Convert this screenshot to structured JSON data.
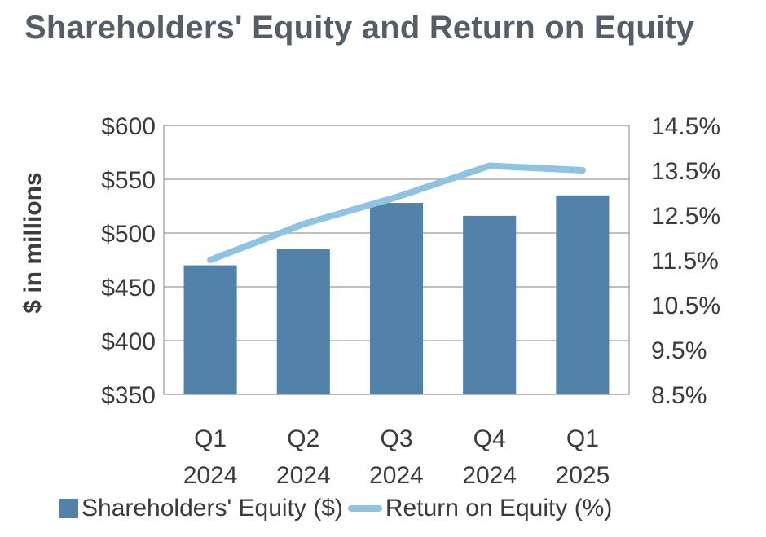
{
  "chart_data": {
    "type": "bar",
    "title": "Shareholders' Equity and Return on Equity",
    "xlabel": "",
    "ylabel": "$ in millions",
    "categories": [
      [
        "Q1",
        "2024"
      ],
      [
        "Q2",
        "2024"
      ],
      [
        "Q3",
        "2024"
      ],
      [
        "Q4",
        "2024"
      ],
      [
        "Q1",
        "2025"
      ]
    ],
    "series": [
      {
        "name": "Shareholders' Equity ($)",
        "type": "bar",
        "axis": "left",
        "color": "#5282aa",
        "values": [
          470,
          485,
          528,
          516,
          535
        ]
      },
      {
        "name": "Return on Equity (%)",
        "type": "line",
        "axis": "right",
        "color": "#8ec3e3",
        "values": [
          11.5,
          12.3,
          12.9,
          13.6,
          13.5
        ]
      }
    ],
    "y_left": {
      "range": [
        350,
        600
      ],
      "ticks": [
        350,
        400,
        450,
        500,
        550,
        600
      ],
      "tick_labels": [
        "$350",
        "$400",
        "$450",
        "$500",
        "$550",
        "$600"
      ]
    },
    "y_right": {
      "range": [
        8.5,
        14.5
      ],
      "ticks": [
        8.5,
        9.5,
        10.5,
        11.5,
        12.5,
        13.5,
        14.5
      ],
      "tick_labels": [
        "8.5%",
        "9.5%",
        "10.5%",
        "11.5%",
        "12.5%",
        "13.5%",
        "14.5%"
      ]
    },
    "grid": true,
    "legend": "bottom"
  }
}
